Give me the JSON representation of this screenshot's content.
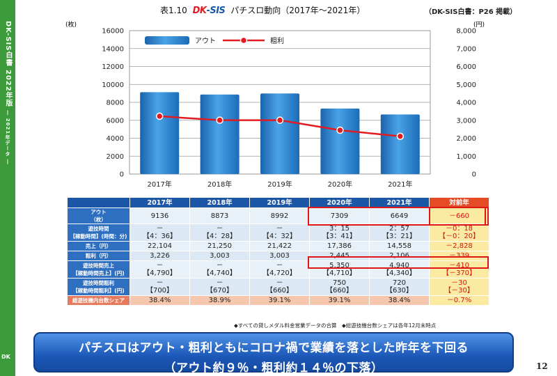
{
  "sidebar": {
    "title": "DK-SIS白書 2022年版",
    "subtitle": "― 2021年データ ―",
    "bottom_logo": "DK"
  },
  "header": {
    "table_no": "表1.10",
    "logo_a": "DK",
    "logo_b": "-SIS",
    "title": "パチスロ動向（2017年～2021年）",
    "source": "（DK-SIS白書：P26 掲載）"
  },
  "chart_data": {
    "type": "bar",
    "categories": [
      "2017年",
      "2018年",
      "2019年",
      "2020年",
      "2021年"
    ],
    "left_unit": "(枚)",
    "right_unit": "(円)",
    "left_ticks": [
      "0",
      "2000",
      "4000",
      "6000",
      "8000",
      "10000",
      "12000",
      "14000",
      "16000"
    ],
    "right_ticks": [
      "0",
      "1,000",
      "2,000",
      "3,000",
      "4,000",
      "5,000",
      "6,000",
      "7,000",
      "8,000"
    ],
    "ylim_left": [
      0,
      16000
    ],
    "ylim_right": [
      0,
      8000
    ],
    "series": [
      {
        "name": "アウト",
        "type": "bar",
        "axis": "left",
        "values": [
          9136,
          8873,
          8992,
          7309,
          6649
        ],
        "color": "#2a7fc9"
      },
      {
        "name": "粗利",
        "type": "line",
        "axis": "right",
        "values": [
          3226,
          3003,
          3003,
          2445,
          2106
        ],
        "color": "#e01b22"
      }
    ],
    "grid": true,
    "legend_position": "top"
  },
  "table": {
    "headers": [
      "2017年",
      "2018年",
      "2019年",
      "2020年",
      "2021年",
      "対前年"
    ],
    "rows": [
      {
        "label": "アウト\n（枚）",
        "cells": [
          "9136",
          "8873",
          "8992",
          "7309",
          "6649"
        ],
        "delta": "－660"
      },
      {
        "label": "遊技時間\n【稼動時間】(時間：分)",
        "cells": [
          "－\n【4：36】",
          "－\n【4：28】",
          "－\n【4：32】",
          "3：15\n【3：41】",
          "2：57\n【3：21】"
        ],
        "delta": "－0：18\n【－0：20】"
      },
      {
        "label": "売上（円）",
        "cells": [
          "22,104",
          "21,250",
          "21,422",
          "17,386",
          "14,558"
        ],
        "delta": "－2,828"
      },
      {
        "label": "粗利（円）",
        "cells": [
          "3,226",
          "3,003",
          "3,003",
          "2,445",
          "2,106"
        ],
        "delta": "－339"
      },
      {
        "label": "遊技時間売上\n【稼動時間売上】(円)",
        "cells": [
          "－\n【4,790】",
          "－\n【4,740】",
          "－\n【4,720】",
          "5,350\n【4,710】",
          "4,940\n【4,340】"
        ],
        "delta": "－410\n【－370】"
      },
      {
        "label": "遊技時間粗利\n【稼動時間粗利】(円)",
        "cells": [
          "－\n【700】",
          "－\n【670】",
          "－\n【660】",
          "750\n【660】",
          "720\n【630】"
        ],
        "delta": "－30\n【－30】"
      },
      {
        "label": "総遊技機内台数シェア",
        "cells": [
          "38.4%",
          "38.9%",
          "39.1%",
          "39.1%",
          "38.4%"
        ],
        "delta": "－0.7%"
      }
    ]
  },
  "footnote": "◆すべての貸しメダル料金営業データの合算　◆総遊技機台数シェアは各年12月末時点",
  "banner": {
    "line1": "パチスロはアウト・粗利ともにコロナ禍で業績を落とした昨年を下回る",
    "line2": "（アウト約９％・粗利約１４％の下落）"
  },
  "page_number": "12"
}
